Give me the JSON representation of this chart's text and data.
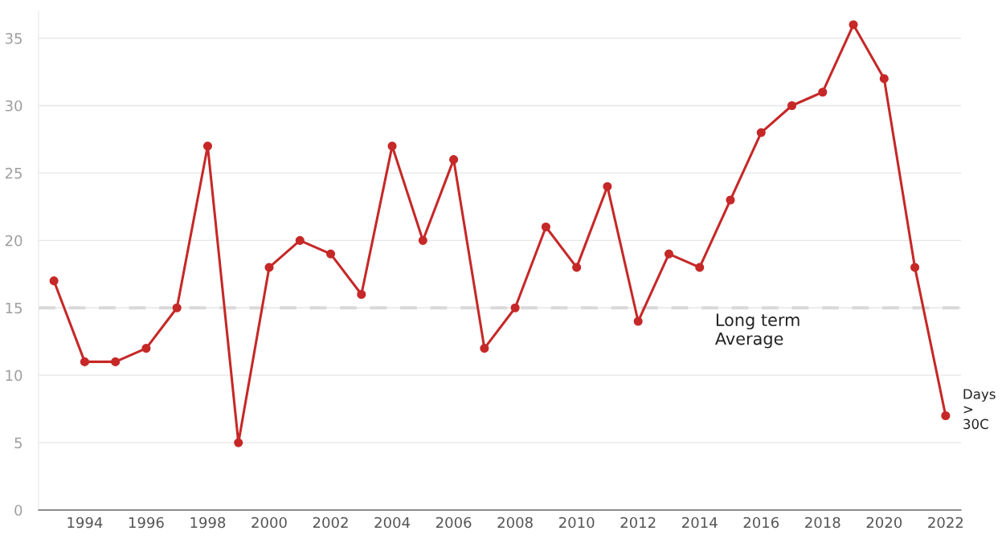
{
  "chart_data": {
    "type": "line",
    "x": [
      1993,
      1994,
      1995,
      1996,
      1997,
      1998,
      1999,
      2000,
      2001,
      2002,
      2003,
      2004,
      2005,
      2006,
      2007,
      2008,
      2009,
      2010,
      2011,
      2012,
      2013,
      2014,
      2015,
      2016,
      2017,
      2018,
      2019,
      2020,
      2021,
      2022
    ],
    "series": [
      {
        "name": "Days > 30C",
        "color": "#c62828",
        "values": [
          17,
          11,
          11,
          12,
          15,
          27,
          5,
          18,
          20,
          19,
          16,
          27,
          20,
          26,
          12,
          15,
          21,
          18,
          24,
          14,
          19,
          18,
          23,
          28,
          30,
          31,
          36,
          32,
          18,
          7
        ]
      }
    ],
    "xlim": [
      1992.5,
      2022.5
    ],
    "xticks": [
      1994,
      1996,
      1998,
      2000,
      2002,
      2004,
      2006,
      2008,
      2010,
      2012,
      2014,
      2016,
      2018,
      2020,
      2022
    ],
    "ylim": [
      0,
      37
    ],
    "yticks": [
      0,
      5,
      10,
      15,
      20,
      25,
      30,
      35
    ],
    "ref_lines": [
      {
        "axis": "y",
        "value": 15,
        "label": "Long term Average",
        "color": "#d9d9d9",
        "line_style": "dashed"
      }
    ],
    "grid": "y",
    "marker": "circle",
    "line_style": "solid",
    "legend": false
  }
}
